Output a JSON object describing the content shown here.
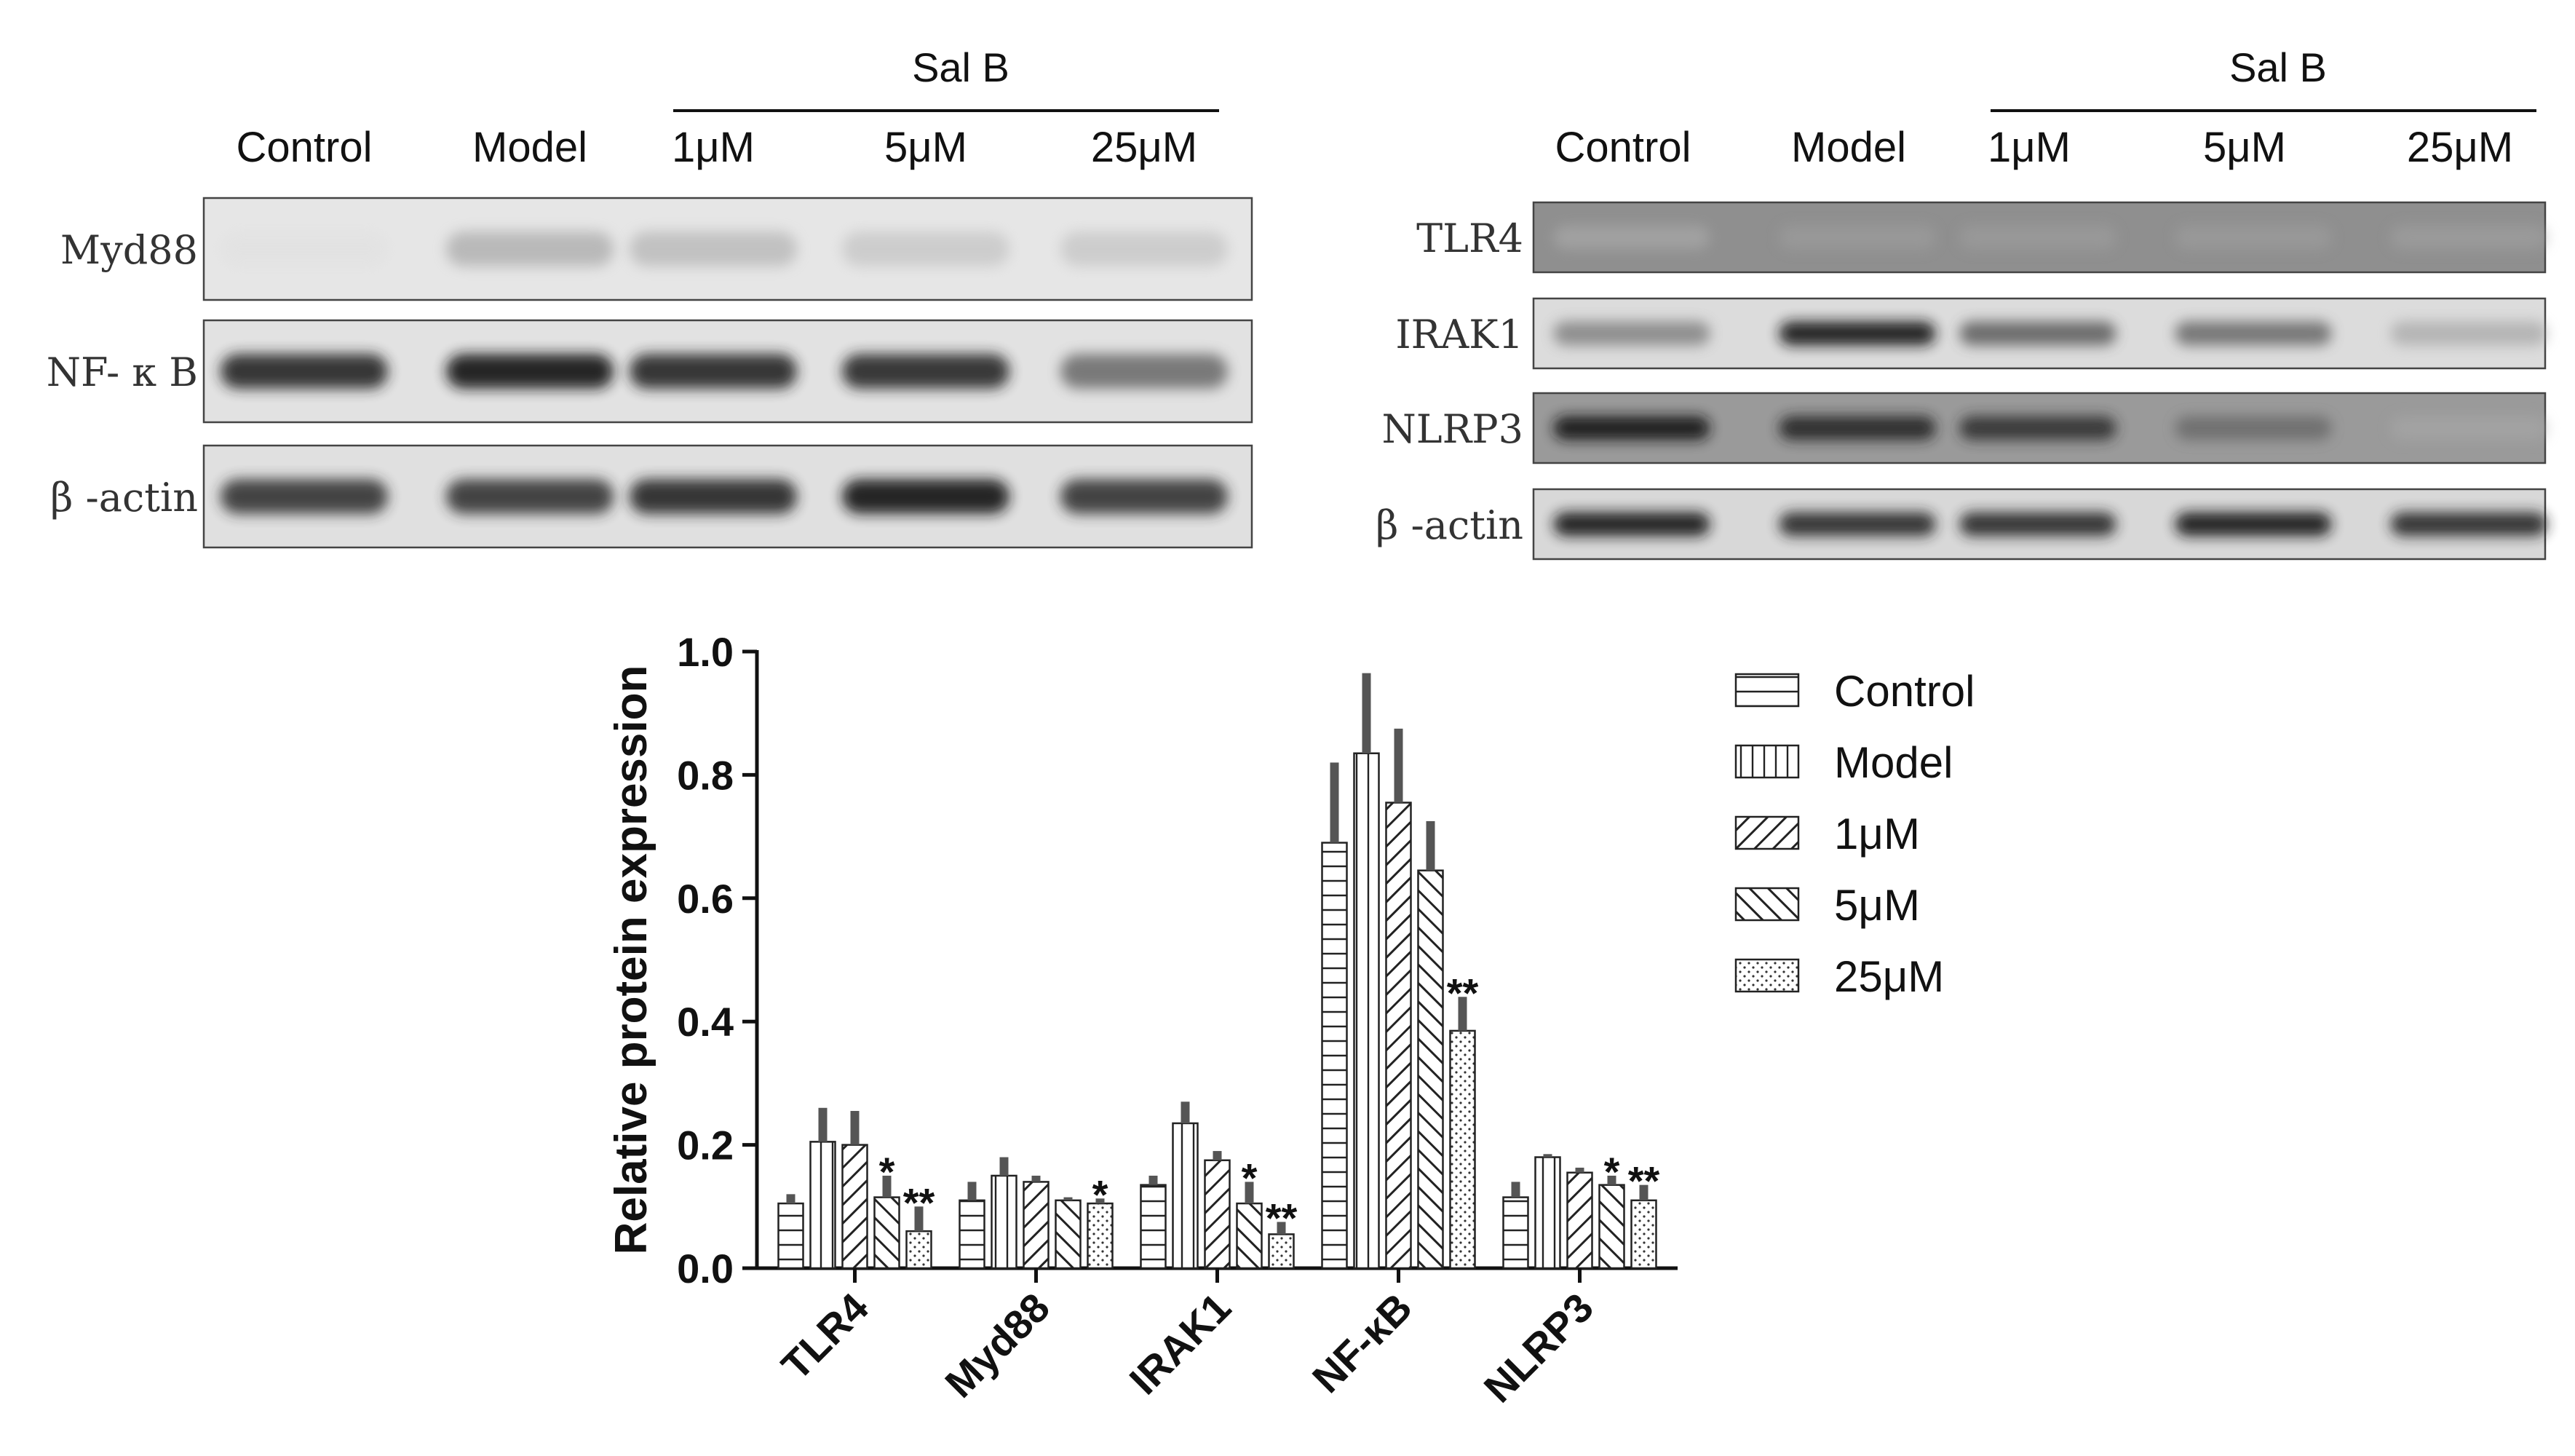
{
  "blots": {
    "left": {
      "group_label": "Sal B",
      "lanes": [
        "Control",
        "Model",
        "1μM",
        "5μM",
        "25μM"
      ],
      "rows": [
        {
          "label": "Myd88",
          "intensities": [
            0.02,
            0.35,
            0.3,
            0.22,
            0.22
          ],
          "bg": "#e6e6e6"
        },
        {
          "label": "NF- κ B",
          "intensities": [
            0.9,
            0.95,
            0.9,
            0.88,
            0.65
          ],
          "bg": "#e2e2e2"
        },
        {
          "label": "β -actin",
          "intensities": [
            0.85,
            0.85,
            0.9,
            0.95,
            0.85
          ],
          "bg": "#e0e0e0"
        }
      ]
    },
    "right": {
      "group_label": "Sal B",
      "lanes": [
        "Control",
        "Model",
        "1μM",
        "5μM",
        "25μM"
      ],
      "rows": [
        {
          "label": "TLR4",
          "intensities": [
            0.2,
            0.3,
            0.3,
            0.3,
            0.28
          ],
          "bg": "#8f8f8f"
        },
        {
          "label": "IRAK1",
          "intensities": [
            0.55,
            0.95,
            0.7,
            0.65,
            0.35
          ],
          "bg": "#dcdcdc"
        },
        {
          "label": "NLRP3",
          "intensities": [
            0.95,
            0.9,
            0.85,
            0.6,
            0.25
          ],
          "bg": "#9a9a9a"
        },
        {
          "label": "β -actin",
          "intensities": [
            0.95,
            0.9,
            0.9,
            0.95,
            0.9
          ],
          "bg": "#d8d8d8"
        }
      ]
    }
  },
  "chart_data": {
    "type": "bar",
    "xlabel": "",
    "ylabel": "Relative protein expression",
    "ylim": [
      0,
      1.0
    ],
    "yticks": [
      "0.0",
      "0.2",
      "0.4",
      "0.6",
      "0.8",
      "1.0"
    ],
    "categories": [
      "TLR4",
      "Myd88",
      "IRAK1",
      "NF-κB",
      "NLRP3"
    ],
    "legend_position": "right",
    "series": [
      {
        "name": "Control",
        "pattern": "hlines",
        "values": [
          0.105,
          0.11,
          0.135,
          0.69,
          0.115
        ],
        "errors": [
          0.015,
          0.03,
          0.015,
          0.13,
          0.025
        ],
        "marks": [
          "",
          "",
          "",
          "",
          ""
        ]
      },
      {
        "name": "Model",
        "pattern": "vlines",
        "values": [
          0.205,
          0.15,
          0.235,
          0.835,
          0.18
        ],
        "errors": [
          0.055,
          0.03,
          0.035,
          0.13,
          0.005
        ],
        "marks": [
          "",
          "",
          "",
          "",
          ""
        ]
      },
      {
        "name": "1μM",
        "pattern": "diag",
        "values": [
          0.2,
          0.14,
          0.175,
          0.755,
          0.155
        ],
        "errors": [
          0.055,
          0.01,
          0.015,
          0.12,
          0.008
        ],
        "marks": [
          "",
          "",
          "",
          "",
          ""
        ]
      },
      {
        "name": "5μM",
        "pattern": "antidiag",
        "values": [
          0.115,
          0.11,
          0.105,
          0.645,
          0.135
        ],
        "errors": [
          0.035,
          0.005,
          0.035,
          0.08,
          0.015
        ],
        "marks": [
          "*",
          "",
          "*",
          "",
          "*"
        ]
      },
      {
        "name": "25μM",
        "pattern": "dots",
        "values": [
          0.06,
          0.105,
          0.055,
          0.385,
          0.11
        ],
        "errors": [
          0.04,
          0.008,
          0.02,
          0.055,
          0.025
        ],
        "marks": [
          "**",
          "*",
          "**",
          "**",
          "**"
        ]
      }
    ]
  }
}
